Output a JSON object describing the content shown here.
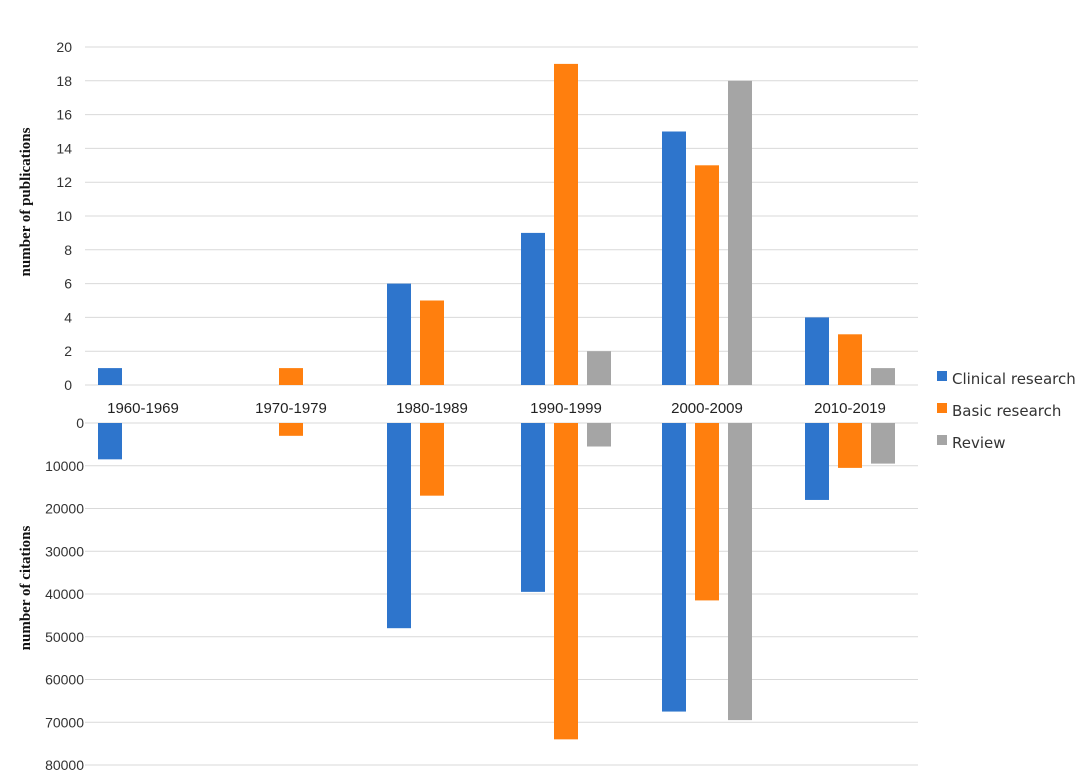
{
  "chart_data": {
    "type": "bar",
    "categories": [
      "1960-1969",
      "1970-1979",
      "1980-1989",
      "1990-1999",
      "2000-2009",
      "2010-2019"
    ],
    "series": [
      {
        "name": "Clinical research",
        "color": "#2e75cc",
        "publications": [
          1,
          0,
          6,
          9,
          15,
          4
        ],
        "citations": [
          8500,
          0,
          48000,
          39500,
          67500,
          18000
        ]
      },
      {
        "name": "Basic research",
        "color": "#ff7f0e",
        "publications": [
          0,
          1,
          5,
          19,
          13,
          3
        ],
        "citations": [
          0,
          3000,
          17000,
          74000,
          41500,
          10500
        ]
      },
      {
        "name": "Review",
        "color": "#a5a5a5",
        "publications": [
          0,
          0,
          0,
          2,
          18,
          1
        ],
        "citations": [
          0,
          0,
          0,
          5500,
          69500,
          9500
        ]
      }
    ],
    "top_axis": {
      "label": "number of publications",
      "ylim": [
        0,
        20
      ],
      "ticks": [
        "0",
        "2",
        "4",
        "6",
        "8",
        "10",
        "12",
        "14",
        "16",
        "18",
        "20"
      ]
    },
    "bottom_axis": {
      "label": "number of citations",
      "ylim": [
        0,
        80000
      ],
      "ticks": [
        "0",
        "10000",
        "20000",
        "30000",
        "40000",
        "50000",
        "60000",
        "70000",
        "80000"
      ]
    },
    "grid": true,
    "legend_position": "right"
  }
}
